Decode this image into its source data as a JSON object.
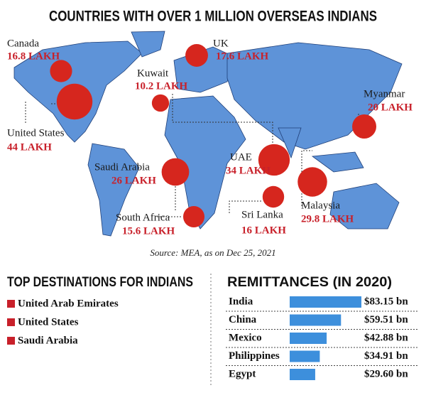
{
  "chart_data": [
    {
      "type": "bubble",
      "title": "COUNTRIES WITH OVER 1 MILLION OVERSEAS INDIANS",
      "categories": [
        "Canada",
        "UK",
        "Kuwait",
        "United States",
        "Myanmar",
        "Saudi Arabia",
        "UAE",
        "Malaysia",
        "Sri Lanka",
        "South Africa"
      ],
      "values": [
        16.8,
        17.6,
        10.2,
        44,
        20,
        26,
        34,
        29.8,
        16,
        15.6
      ],
      "value_labels": [
        "16.8 LAKH",
        "17.6 LAKH",
        "10.2 LAKH",
        "44 LAKH",
        "20 LAKH",
        "26 LAKH",
        "34 LAKH",
        "29.8 LAKH",
        "16 LAKH",
        "15.6 LAKH"
      ],
      "color": "#d6261e",
      "source": "Source: MEA, as on Dec 25, 2021"
    },
    {
      "type": "bar",
      "title": "REMITTANCES (IN 2020)",
      "categories": [
        "India",
        "China",
        "Mexico",
        "Philippines",
        "Egypt"
      ],
      "values": [
        83.15,
        59.51,
        42.88,
        34.91,
        29.6
      ],
      "value_labels": [
        "$83.15 bn",
        "$59.51 bn",
        "$42.88 bn",
        "$34.91 bn",
        "$29.60 bn"
      ],
      "color": "#3d8fdc"
    }
  ],
  "top_destinations": {
    "title": "TOP DESTINATIONS FOR INDIANS",
    "items": [
      "United Arab Emirates",
      "United States",
      "Saudi Arabia"
    ]
  }
}
